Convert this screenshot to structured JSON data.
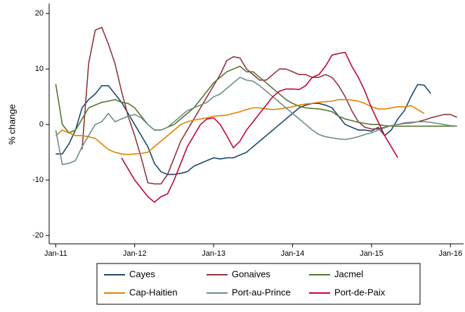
{
  "chart_data": {
    "type": "line",
    "y_label": "% change",
    "x": [
      "2011-01",
      "2011-02",
      "2011-03",
      "2011-04",
      "2011-05",
      "2011-06",
      "2011-07",
      "2011-08",
      "2011-09",
      "2011-10",
      "2011-11",
      "2011-12",
      "2012-01",
      "2012-02",
      "2012-03",
      "2012-04",
      "2012-05",
      "2012-06",
      "2012-07",
      "2012-08",
      "2012-09",
      "2012-10",
      "2012-11",
      "2012-12",
      "2013-01",
      "2013-02",
      "2013-03",
      "2013-04",
      "2013-05",
      "2013-06",
      "2013-07",
      "2013-08",
      "2013-09",
      "2013-10",
      "2013-11",
      "2013-12",
      "2014-01",
      "2014-02",
      "2014-03",
      "2014-04",
      "2014-05",
      "2014-06",
      "2014-07",
      "2014-08",
      "2014-09",
      "2014-10",
      "2014-11",
      "2014-12",
      "2015-01",
      "2015-02",
      "2015-03",
      "2015-04",
      "2015-05",
      "2015-06",
      "2015-07",
      "2015-08",
      "2015-09",
      "2015-10",
      "2015-11",
      "2015-12",
      "2016-01",
      "2016-02"
    ],
    "xlim": [
      "2010-12",
      "2016-03"
    ],
    "xticks": [
      {
        "value": "2011-01",
        "label": "Jan-11"
      },
      {
        "value": "2012-01",
        "label": "Jan-12"
      },
      {
        "value": "2013-01",
        "label": "Jan-13"
      },
      {
        "value": "2014-01",
        "label": "Jan-14"
      },
      {
        "value": "2015-01",
        "label": "Jan-15"
      },
      {
        "value": "2016-01",
        "label": "Jan-16"
      }
    ],
    "ylim": [
      -21.5,
      21.8
    ],
    "yticks": [
      -20,
      -10,
      0,
      10,
      20
    ],
    "grid": false,
    "legend": "bottom",
    "series": [
      {
        "name": "Cayes",
        "color": "#1a476f",
        "values": [
          -5.3,
          -5.3,
          -3.5,
          -1,
          3,
          4.5,
          5.5,
          7,
          7,
          5.5,
          4,
          2,
          0,
          -2,
          -4,
          -7,
          -8.5,
          -9,
          -9,
          -8.8,
          -8.5,
          -7.5,
          -7,
          -6.5,
          -6,
          -6.2,
          -6,
          -6,
          -5.5,
          -5,
          -4,
          -3,
          -2,
          -1,
          0,
          1,
          2,
          3,
          3.5,
          3.8,
          3.8,
          3.5,
          3,
          1.5,
          0,
          -0.5,
          -1,
          -1,
          -1.2,
          -0.5,
          -2,
          -1,
          1,
          2.5,
          5,
          7.2,
          7.1,
          5.6,
          null,
          null,
          null,
          null
        ]
      },
      {
        "name": "Gonaives",
        "color": "#90353b",
        "values": [
          null,
          null,
          null,
          null,
          -4.5,
          11,
          17,
          17.5,
          14.5,
          11,
          6,
          1.5,
          -2,
          -6,
          -10.5,
          -10.7,
          -10.7,
          -9,
          -6,
          -3,
          -1,
          1,
          3,
          5,
          7,
          9,
          11.5,
          12.2,
          12,
          10,
          9,
          8,
          8,
          9,
          10,
          10,
          9.5,
          9,
          9,
          8.5,
          8.5,
          9,
          8.5,
          7,
          5,
          2.5,
          0.5,
          -0.5,
          -0.8,
          -0.8,
          -0.5,
          -0.2,
          0,
          0.2,
          0.3,
          0.5,
          0.8,
          1.2,
          1.5,
          1.8,
          1.8,
          1.3
        ]
      },
      {
        "name": "Jacmel",
        "color": "#55752f",
        "values": [
          7.3,
          0,
          -1.5,
          -1,
          1,
          3,
          3.5,
          4,
          4.2,
          4.5,
          4,
          3.8,
          3,
          1.5,
          0,
          -1,
          -1,
          -0.5,
          0,
          1,
          2,
          3,
          4.5,
          6,
          7.5,
          8.5,
          9.5,
          10,
          10.5,
          9.5,
          9.5,
          8.5,
          7.5,
          6.5,
          5.5,
          4.5,
          3.8,
          3.3,
          3,
          2.9,
          2.8,
          2.6,
          2.3,
          1.5,
          1,
          0.7,
          0.4,
          0.2,
          0,
          0,
          -0.2,
          -0.3,
          -0.3,
          -0.3,
          -0.3,
          -0.3,
          -0.3,
          -0.3,
          -0.3,
          -0.3,
          -0.3,
          -0.3
        ]
      },
      {
        "name": "Cap-Haitien",
        "color": "#e37e00",
        "values": [
          -2,
          -1,
          -1.5,
          -2,
          -2,
          -2.2,
          -2.5,
          -3.5,
          -4.5,
          -5,
          -5.3,
          -5.4,
          -5.3,
          -5.2,
          -5,
          -4,
          -3,
          -2,
          -1,
          0,
          0.5,
          0.8,
          1,
          1.2,
          1.5,
          1.6,
          1.7,
          2,
          2.3,
          2.7,
          3,
          3,
          2.8,
          2.7,
          2.8,
          3,
          3.2,
          3.5,
          3.7,
          3.8,
          4,
          4.1,
          4.2,
          4.5,
          4.5,
          4.4,
          4.2,
          3.8,
          3.2,
          2.8,
          2.8,
          3,
          3.2,
          3.2,
          3.4,
          2.7,
          2.0,
          null,
          null,
          null,
          null,
          null
        ]
      },
      {
        "name": "Port-au-Prince",
        "color": "#6e8e84",
        "values": [
          -1,
          -7.2,
          -7,
          -6.5,
          -4,
          -2,
          0,
          0.5,
          2,
          0.5,
          1,
          1.5,
          1.8,
          1.2,
          0,
          -1,
          -1,
          -0.5,
          0.5,
          1.5,
          2.5,
          3,
          3.5,
          4,
          5,
          5.5,
          6.5,
          7.5,
          8.5,
          8,
          7.8,
          7,
          6,
          5,
          4,
          3,
          2,
          1,
          0,
          -1,
          -1.8,
          -2.2,
          -2.4,
          -2.6,
          -2.7,
          -2.5,
          -2.2,
          -1.8,
          -1.5,
          -1,
          -0.6,
          -0.2,
          0,
          0.3,
          0.4,
          0.5,
          0.5,
          0.4,
          0.2,
          0,
          -0.2,
          -0.3
        ]
      },
      {
        "name": "Port-de-Paix",
        "color": "#c10534",
        "values": [
          null,
          null,
          null,
          null,
          null,
          null,
          null,
          null,
          null,
          null,
          -6,
          -8,
          -10,
          -11.5,
          -13,
          -14,
          -13,
          -12.5,
          -10,
          -7,
          -4,
          -2,
          0,
          1,
          1.2,
          0,
          -2,
          -4.2,
          -3,
          -1,
          0.5,
          2,
          3.5,
          5,
          6,
          6.4,
          6.4,
          6.3,
          7,
          8.5,
          9,
          10.5,
          12.5,
          12.8,
          13,
          10.5,
          8.5,
          6,
          3,
          0.5,
          -2,
          -4,
          -6,
          null,
          null,
          null,
          null,
          null,
          null,
          null,
          null,
          null
        ]
      }
    ]
  }
}
